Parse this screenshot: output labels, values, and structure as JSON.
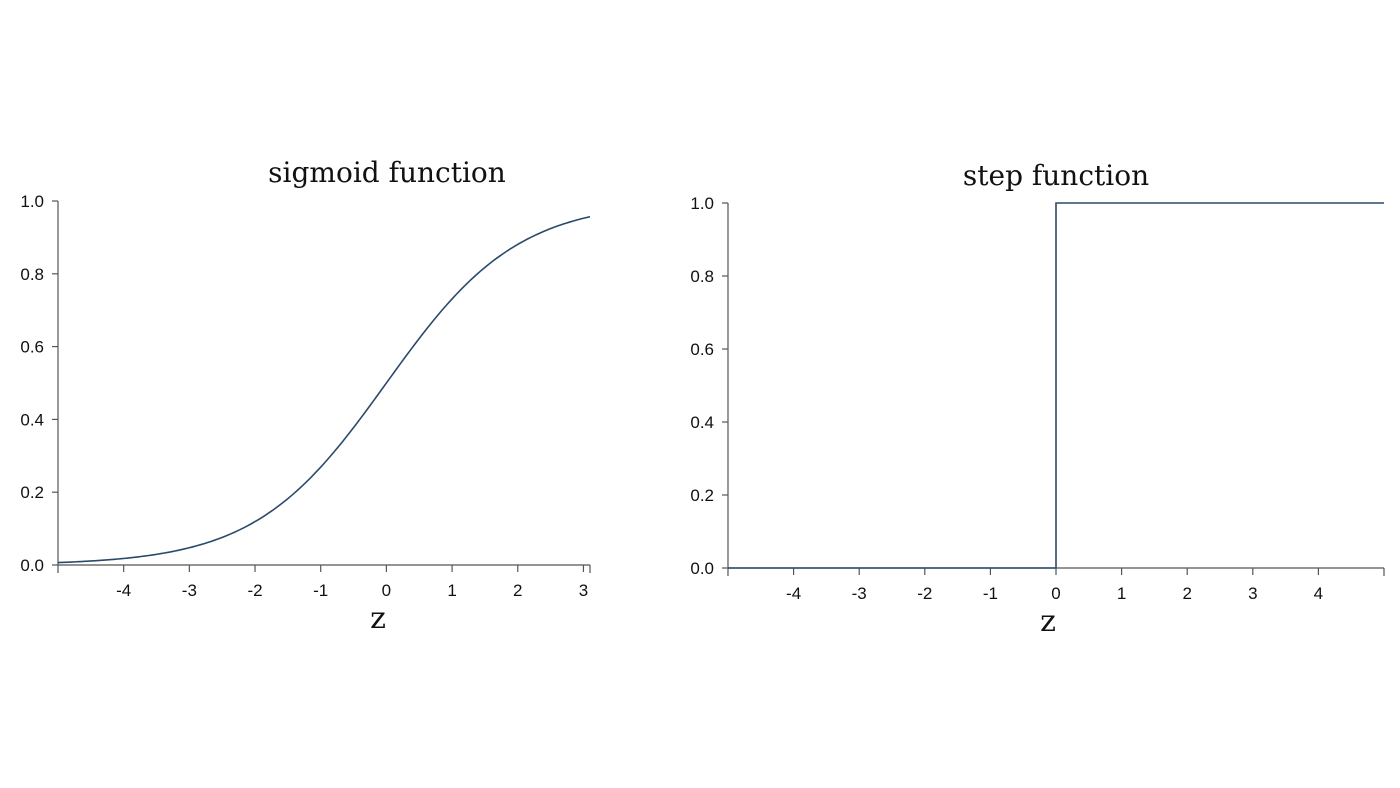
{
  "chart_data": [
    {
      "type": "line",
      "title": "sigmoid function",
      "xlabel": "z",
      "ylabel": "",
      "xlim": [
        -5,
        3.1
      ],
      "ylim": [
        0,
        1
      ],
      "xticks": [
        -4,
        -3,
        -2,
        -1,
        0,
        1,
        2,
        3
      ],
      "xtick_labels": [
        "-4",
        "-3",
        "-2",
        "-1",
        "0",
        "1",
        "2",
        "3"
      ],
      "yticks": [
        0,
        0.2,
        0.4,
        0.6,
        0.8,
        1
      ],
      "ytick_labels": [
        "0.0",
        "0.2",
        "0.4",
        "0.6",
        "0.8",
        "1.0"
      ],
      "grid": false,
      "line_color": "#2b4a6b",
      "x": [
        -5,
        -4.5,
        -4,
        -3.5,
        -3,
        -2.5,
        -2,
        -1.5,
        -1,
        -0.5,
        0,
        0.5,
        1,
        1.5,
        2,
        2.5,
        3,
        3.1
      ],
      "y": [
        0.0067,
        0.011,
        0.018,
        0.029,
        0.047,
        0.076,
        0.119,
        0.182,
        0.269,
        0.378,
        0.5,
        0.622,
        0.731,
        0.818,
        0.881,
        0.924,
        0.953,
        0.957
      ]
    },
    {
      "type": "line",
      "title": "step function",
      "xlabel": "z",
      "ylabel": "",
      "xlim": [
        -5,
        5
      ],
      "ylim": [
        0,
        1
      ],
      "xticks": [
        -4,
        -3,
        -2,
        -1,
        0,
        1,
        2,
        3,
        4
      ],
      "xtick_labels": [
        "-4",
        "-3",
        "-2",
        "-1",
        "0",
        "1",
        "2",
        "3",
        "4"
      ],
      "yticks": [
        0,
        0.2,
        0.4,
        0.6,
        0.8,
        1
      ],
      "ytick_labels": [
        "0.0",
        "0.2",
        "0.4",
        "0.6",
        "0.8",
        "1.0"
      ],
      "grid": false,
      "line_color": "#2b4a6b",
      "x": [
        -5,
        0,
        0,
        5
      ],
      "y": [
        0,
        0,
        1,
        1
      ]
    }
  ]
}
